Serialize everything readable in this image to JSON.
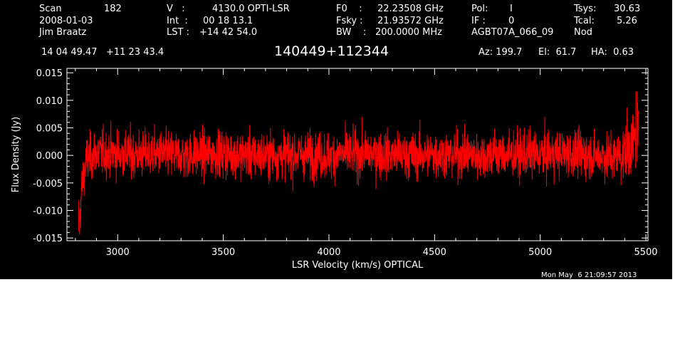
{
  "header": {
    "col1": {
      "scan_label": "Scan",
      "scan_value": "182",
      "date": "2008-01-03",
      "observer": "Jim Braatz"
    },
    "col2": {
      "v_label": "V   :",
      "v_value": "4130.0 OPTI-LSR",
      "int_label": "Int  :",
      "int_value": "00 18 13.1",
      "lst_label": "LST :",
      "lst_value": "+14 42 54.0"
    },
    "col3": {
      "f0_label": "F0    :",
      "f0_value": "22.23508 GHz",
      "fsky_label": "Fsky :",
      "fsky_value": "21.93572 GHz",
      "bw_label": "BW    :",
      "bw_value": "200.0000 MHz"
    },
    "col4": {
      "pol_label": "Pol:",
      "pol_value": "I",
      "if_label": "IF :",
      "if_value": "0",
      "project": "AGBT07A_066_09"
    },
    "col5": {
      "tsys_label": "Tsys:",
      "tsys_value": "30.63",
      "tcal_label": "Tcal:",
      "tcal_value": "5.26",
      "mode": "Nod"
    },
    "coords": "14 04 49.47   +11 23 43.4",
    "source": "140449+112344",
    "az": "Az: 199.7",
    "el": "El:  61.7",
    "ha": "HA:  0.63"
  },
  "timestamp": "Mon May  6 21:09:57 2013",
  "colors": {
    "background": "#000000",
    "axes": "#ffffff",
    "trace": "#ff0000"
  },
  "chart_data": {
    "type": "line",
    "title": "",
    "xlabel": "LSR Velocity (km/s) OPTICAL",
    "ylabel": "Flux Density (Jy)",
    "xlim": [
      2760,
      5510
    ],
    "ylim": [
      -0.0155,
      0.0158
    ],
    "x_ticks": [
      3000,
      3500,
      4000,
      4500,
      5000,
      5500
    ],
    "y_ticks": [
      -0.015,
      -0.01,
      -0.005,
      0.0,
      0.005,
      0.01,
      0.015
    ],
    "y_tick_labels": [
      "-0.015",
      "-0.010",
      "-0.005",
      "0.000",
      "0.005",
      "0.010",
      "0.015"
    ],
    "grid": false,
    "legend": "none",
    "series": [
      {
        "color": "#ff0000",
        "x": [
          2815,
          2820,
          2830,
          2850,
          2900,
          3000,
          3100,
          3200,
          3300,
          3400,
          3500,
          3600,
          3700,
          3800,
          3900,
          4000,
          4100,
          4200,
          4300,
          4400,
          4500,
          4600,
          4700,
          4800,
          4900,
          5000,
          5100,
          5200,
          5300,
          5350,
          5400,
          5430,
          5450,
          5460,
          5465
        ],
        "y": [
          -0.011,
          -0.0125,
          -0.006,
          -0.001,
          0.0005,
          0.0003,
          0.0002,
          0.0003,
          0.0,
          0.0002,
          0.0003,
          0.0001,
          0.0,
          0.0002,
          0.0001,
          0.0,
          0.0002,
          0.0003,
          0.0001,
          0.0,
          0.0002,
          0.0001,
          0.0,
          0.0002,
          0.0001,
          0.0002,
          0.0003,
          0.0001,
          0.0,
          -0.0003,
          0.0005,
          0.0015,
          0.003,
          0.0045,
          0.004
        ],
        "noise_rms": 0.003,
        "note_peak_positive": [
          5455,
          0.0115
        ],
        "note_peak_negative": [
          2818,
          -0.0138
        ]
      }
    ]
  }
}
